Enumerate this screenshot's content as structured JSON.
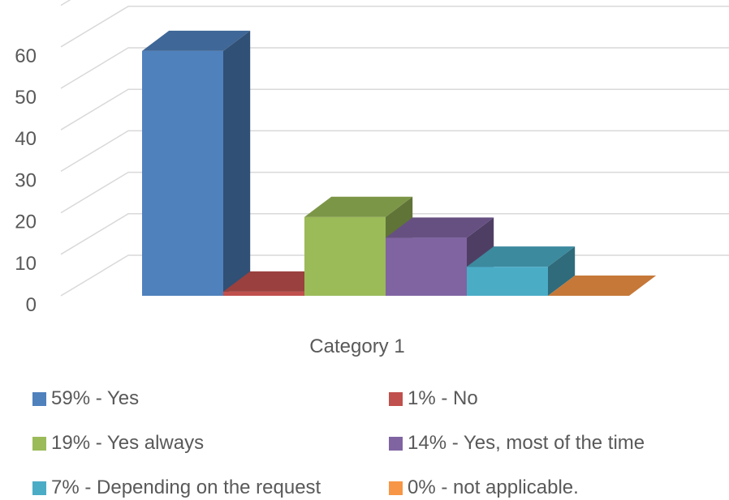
{
  "chart_data": {
    "type": "bar",
    "categories": [
      "Category 1"
    ],
    "series": [
      {
        "name": "59% - Yes",
        "values": [
          59
        ],
        "color": "#4F81BD"
      },
      {
        "name": "1% - No",
        "values": [
          1
        ],
        "color": "#C0504D"
      },
      {
        "name": "19% - Yes always",
        "values": [
          19
        ],
        "color": "#9BBB59"
      },
      {
        "name": "14% - Yes, most of the time",
        "values": [
          14
        ],
        "color": "#8064A2"
      },
      {
        "name": "7% - Depending on the request",
        "values": [
          7
        ],
        "color": "#4BACC6"
      },
      {
        "name": "0% - not applicable.",
        "values": [
          0
        ],
        "color": "#F79646"
      }
    ],
    "yticks": [
      "0",
      "10",
      "20",
      "30",
      "40",
      "50",
      "60"
    ],
    "ylim": [
      0,
      70
    ],
    "grid": true,
    "legend_position": "bottom",
    "style": "3d-clustered-column"
  }
}
